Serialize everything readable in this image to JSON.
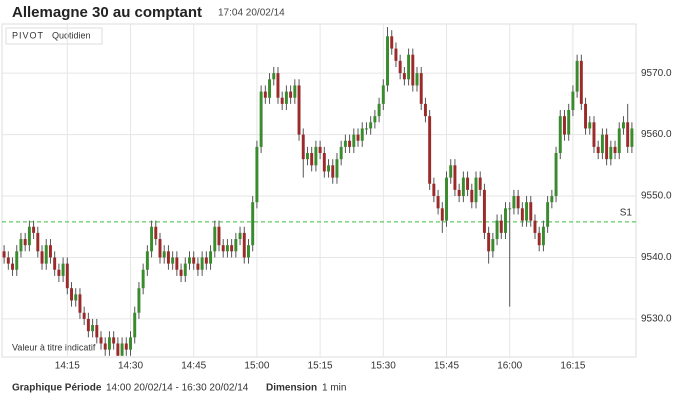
{
  "chart_data": {
    "type": "candlestick",
    "title": "Allemagne 30 au comptant",
    "subtitle": "17:04 20/02/14",
    "indicator_label": "PIVOT",
    "indicator_period": "Quotidien",
    "watermark": "Valeur à titre indicatif",
    "footer": {
      "period_label": "Graphique Période",
      "period": "14:00 20/02/14 - 16:30 20/02/14",
      "dimension_label": "Dimension",
      "dimension": "1 min"
    },
    "up_color": "#3a8a2e",
    "down_color": "#9b2b2b",
    "wick_color": "#555555",
    "pivot": {
      "value": 9545.8,
      "label": "S1",
      "color": "#3cbf3c"
    },
    "ylim": [
      9523.8,
      9578
    ],
    "yticks": [
      {
        "value": 9530,
        "label": "9530.0"
      },
      {
        "value": 9540,
        "label": "9540.0"
      },
      {
        "value": 9550,
        "label": "9550.0"
      },
      {
        "value": 9560,
        "label": "9560.0"
      },
      {
        "value": 9570,
        "label": "9570.0"
      }
    ],
    "xticks": [
      "14:15",
      "14:30",
      "14:45",
      "15:00",
      "15:15",
      "15:30",
      "15:45",
      "16:00",
      "16:15"
    ],
    "grid": true,
    "x": [
      "14:00",
      "14:01",
      "14:02",
      "14:03",
      "14:04",
      "14:05",
      "14:06",
      "14:07",
      "14:08",
      "14:09",
      "14:10",
      "14:11",
      "14:12",
      "14:13",
      "14:14",
      "14:15",
      "14:16",
      "14:17",
      "14:18",
      "14:19",
      "14:20",
      "14:21",
      "14:22",
      "14:23",
      "14:24",
      "14:25",
      "14:26",
      "14:27",
      "14:28",
      "14:29",
      "14:30",
      "14:31",
      "14:32",
      "14:33",
      "14:34",
      "14:35",
      "14:36",
      "14:37",
      "14:38",
      "14:39",
      "14:40",
      "14:41",
      "14:42",
      "14:43",
      "14:44",
      "14:45",
      "14:46",
      "14:47",
      "14:48",
      "14:49",
      "14:50",
      "14:51",
      "14:52",
      "14:53",
      "14:54",
      "14:55",
      "14:56",
      "14:57",
      "14:58",
      "14:59",
      "15:00",
      "15:01",
      "15:02",
      "15:03",
      "15:04",
      "15:05",
      "15:06",
      "15:07",
      "15:08",
      "15:09",
      "15:10",
      "15:11",
      "15:12",
      "15:13",
      "15:14",
      "15:15",
      "15:16",
      "15:17",
      "15:18",
      "15:19",
      "15:20",
      "15:21",
      "15:22",
      "15:23",
      "15:24",
      "15:25",
      "15:26",
      "15:27",
      "15:28",
      "15:29",
      "15:30",
      "15:31",
      "15:32",
      "15:33",
      "15:34",
      "15:35",
      "15:36",
      "15:37",
      "15:38",
      "15:39",
      "15:40",
      "15:41",
      "15:42",
      "15:43",
      "15:44",
      "15:45",
      "15:46",
      "15:47",
      "15:48",
      "15:49",
      "15:50",
      "15:51",
      "15:52",
      "15:53",
      "15:54",
      "15:55",
      "15:56",
      "15:57",
      "15:58",
      "15:59",
      "16:00",
      "16:01",
      "16:02",
      "16:03",
      "16:04",
      "16:05",
      "16:06",
      "16:07",
      "16:08",
      "16:09",
      "16:10",
      "16:11",
      "16:12",
      "16:13",
      "16:14",
      "16:15",
      "16:16",
      "16:17",
      "16:18",
      "16:19",
      "16:20",
      "16:21",
      "16:22",
      "16:23",
      "16:24",
      "16:25",
      "16:26",
      "16:27",
      "16:28",
      "16:29"
    ],
    "open": [
      9541,
      9540,
      9539,
      9538,
      9541,
      9543,
      9542,
      9545,
      9544,
      9541,
      9539,
      9542,
      9540,
      9538,
      9537,
      9539,
      9535,
      9533,
      9534,
      9531,
      9530,
      9528,
      9529,
      9527,
      9526,
      9525,
      9527,
      9526,
      9524,
      9526,
      9525,
      9527,
      9531,
      9535,
      9538,
      9541,
      9545,
      9543,
      9540,
      9541,
      9539,
      9540,
      9538,
      9537,
      9539,
      9540,
      9539,
      9538,
      9540,
      9539,
      9541,
      9545,
      9542,
      9541,
      9542,
      9541,
      9543,
      9544,
      9540,
      9542,
      9549,
      9558,
      9567,
      9566,
      9569,
      9570,
      9566,
      9565,
      9567,
      9566,
      9568,
      9560,
      9556,
      9557,
      9555,
      9558,
      9557,
      9554,
      9555,
      9553,
      9556,
      9558,
      9559,
      9558,
      9560,
      9559,
      9561,
      9561,
      9562,
      9563,
      9565,
      9568,
      9576,
      9574,
      9572,
      9570,
      9569,
      9573,
      9568,
      9570,
      9565,
      9563,
      9552,
      9550,
      9548,
      9546,
      9553,
      9555,
      9551,
      9550,
      9553,
      9551,
      9549,
      9553,
      9551,
      9544,
      9541,
      9543,
      9546,
      9544,
      9548,
      9548,
      9550,
      9548,
      9546,
      9549,
      9546,
      9544,
      9542,
      9545,
      9549,
      9550,
      9557,
      9563,
      9560,
      9564,
      9567,
      9572,
      9565,
      9561,
      9562,
      9558,
      9557,
      9560,
      9556,
      9558,
      9557,
      9561,
      9562,
      9558
    ],
    "high": [
      9542,
      9541,
      9540,
      9542,
      9544,
      9544,
      9546,
      9546,
      9545,
      9542,
      9543,
      9543,
      9541,
      9539,
      9540,
      9540,
      9536,
      9535,
      9535,
      9532,
      9531,
      9530,
      9530,
      9528,
      9527,
      9528,
      9528,
      9527,
      9527,
      9527,
      9528,
      9532,
      9536,
      9539,
      9542,
      9546,
      9546,
      9544,
      9542,
      9542,
      9541,
      9541,
      9539,
      9540,
      9541,
      9541,
      9540,
      9541,
      9541,
      9542,
      9546,
      9546,
      9543,
      9543,
      9543,
      9544,
      9545,
      9545,
      9543,
      9550,
      9559,
      9568,
      9568,
      9570,
      9571,
      9571,
      9567,
      9568,
      9568,
      9569,
      9569,
      9561,
      9558,
      9558,
      9559,
      9559,
      9558,
      9556,
      9556,
      9557,
      9559,
      9560,
      9560,
      9561,
      9561,
      9562,
      9562,
      9563,
      9564,
      9566,
      9569,
      9577.5,
      9577,
      9575,
      9573,
      9571,
      9574,
      9574,
      9571,
      9571,
      9566,
      9564,
      9553,
      9551,
      9549,
      9554,
      9556,
      9556,
      9552,
      9554,
      9554,
      9552,
      9554,
      9554,
      9552,
      9545,
      9544,
      9547,
      9547,
      9549,
      9549,
      9551,
      9551,
      9549,
      9550,
      9550,
      9547,
      9545,
      9546,
      9550,
      9551,
      9558,
      9564,
      9564,
      9565,
      9568,
      9573,
      9573,
      9566,
      9563,
      9563,
      9559,
      9561,
      9561,
      9559,
      9559,
      9562,
      9563,
      9565,
      9562
    ],
    "low": [
      9539,
      9538,
      9537,
      9537,
      9540,
      9541,
      9541,
      9543,
      9540,
      9538,
      9538,
      9539,
      9537,
      9536,
      9536,
      9534,
      9532,
      9532,
      9530,
      9529,
      9527,
      9527,
      9526,
      9525,
      9524,
      9524,
      9525,
      9524,
      9524,
      9524,
      9524,
      9526,
      9530,
      9534,
      9537,
      9540,
      9542,
      9539,
      9539,
      9538,
      9538,
      9537,
      9536,
      9536,
      9538,
      9538,
      9537,
      9537,
      9538,
      9538,
      9540,
      9541,
      9540,
      9540,
      9540,
      9540,
      9542,
      9539,
      9539,
      9541,
      9548,
      9557,
      9565,
      9565,
      9568,
      9565,
      9564,
      9564,
      9565,
      9565,
      9559,
      9553,
      9555,
      9554,
      9554,
      9556,
      9553,
      9553,
      9552,
      9552,
      9555,
      9557,
      9557,
      9557,
      9558,
      9558,
      9560,
      9560,
      9561,
      9562,
      9564,
      9567,
      9573,
      9571,
      9569,
      9568,
      9568,
      9567,
      9567,
      9564,
      9562,
      9551,
      9549,
      9547,
      9544,
      9545,
      9552,
      9550,
      9549,
      9549,
      9550,
      9548,
      9548,
      9550,
      9543,
      9539,
      9540,
      9542,
      9543,
      9543,
      9532,
      9547,
      9547,
      9545,
      9545,
      9545,
      9543,
      9541,
      9541,
      9544,
      9548,
      9549,
      9556,
      9559,
      9559,
      9563,
      9566,
      9564,
      9560,
      9560,
      9557,
      9556,
      9556,
      9555,
      9555,
      9556,
      9556,
      9560,
      9557,
      9557
    ],
    "close": [
      9540,
      9539,
      9538,
      9541,
      9543,
      9542,
      9545,
      9544,
      9541,
      9539,
      9542,
      9540,
      9538,
      9537,
      9539,
      9535,
      9533,
      9534,
      9531,
      9530,
      9528,
      9529,
      9527,
      9526,
      9525,
      9527,
      9526,
      9524,
      9526,
      9525,
      9527,
      9531,
      9535,
      9538,
      9541,
      9545,
      9543,
      9540,
      9541,
      9539,
      9540,
      9538,
      9537,
      9539,
      9540,
      9539,
      9538,
      9540,
      9539,
      9541,
      9545,
      9542,
      9541,
      9542,
      9541,
      9543,
      9544,
      9540,
      9542,
      9549,
      9558,
      9567,
      9566,
      9569,
      9570,
      9566,
      9565,
      9567,
      9566,
      9568,
      9560,
      9556,
      9557,
      9555,
      9558,
      9557,
      9554,
      9555,
      9553,
      9556,
      9558,
      9559,
      9558,
      9560,
      9559,
      9561,
      9561,
      9562,
      9563,
      9565,
      9568,
      9576,
      9574,
      9572,
      9570,
      9569,
      9573,
      9568,
      9570,
      9565,
      9563,
      9552,
      9550,
      9548,
      9546,
      9553,
      9555,
      9551,
      9550,
      9553,
      9551,
      9549,
      9553,
      9551,
      9544,
      9541,
      9543,
      9546,
      9544,
      9548,
      9548,
      9550,
      9548,
      9546,
      9549,
      9546,
      9544,
      9542,
      9545,
      9549,
      9550,
      9557,
      9563,
      9560,
      9564,
      9567,
      9572,
      9565,
      9561,
      9562,
      9558,
      9557,
      9560,
      9556,
      9558,
      9557,
      9561,
      9562,
      9558,
      9561
    ]
  }
}
